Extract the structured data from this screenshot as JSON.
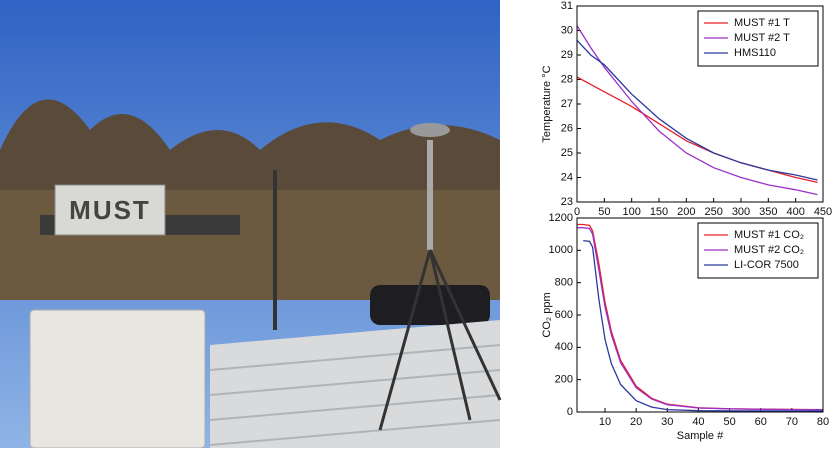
{
  "photo": {
    "label": "MUST"
  },
  "chart_data": [
    {
      "type": "line",
      "ylabel": "Temperature °C",
      "x": [
        0,
        25,
        50,
        75,
        100,
        150,
        200,
        250,
        300,
        350,
        400,
        440
      ],
      "xlim": [
        0,
        450
      ],
      "xticks": [
        0,
        50,
        100,
        150,
        200,
        250,
        300,
        350,
        400,
        450
      ],
      "ylim": [
        23,
        31
      ],
      "yticks": [
        23,
        24,
        25,
        26,
        27,
        28,
        29,
        30,
        31
      ],
      "legend": "upper right",
      "grid": false,
      "series": [
        {
          "name": "MUST #1 T",
          "color": "#e8202a",
          "values": [
            28.1,
            27.8,
            27.5,
            27.2,
            26.9,
            26.2,
            25.5,
            25.0,
            24.6,
            24.3,
            24.0,
            23.8
          ]
        },
        {
          "name": "MUST #2 T",
          "color": "#9b30c8",
          "values": [
            30.2,
            29.3,
            28.5,
            27.8,
            27.1,
            25.9,
            25.0,
            24.4,
            24.0,
            23.7,
            23.5,
            23.3
          ]
        },
        {
          "name": "HMS110",
          "color": "#2a3a9c",
          "values": [
            29.6,
            29.0,
            28.6,
            28.0,
            27.4,
            26.4,
            25.6,
            25.0,
            24.6,
            24.3,
            24.1,
            23.9
          ]
        }
      ]
    },
    {
      "type": "line",
      "ylabel": "CO₂ ppm",
      "xlabel": "Sample #",
      "x": [
        1,
        3,
        5,
        6,
        8,
        10,
        12,
        15,
        20,
        25,
        30,
        40,
        50,
        60,
        70,
        80
      ],
      "xlim": [
        1,
        80
      ],
      "xticks": [
        10,
        20,
        30,
        40,
        50,
        60,
        70,
        80
      ],
      "ylim": [
        0,
        1200
      ],
      "yticks": [
        0,
        200,
        400,
        600,
        800,
        1000,
        1200
      ],
      "legend": "upper right",
      "grid": false,
      "series": [
        {
          "name": "MUST #1 CO₂",
          "color": "#e8202a",
          "values": [
            1160,
            1160,
            1155,
            1120,
            920,
            680,
            500,
            320,
            160,
            85,
            48,
            26,
            20,
            18,
            16,
            15
          ]
        },
        {
          "name": "MUST #2 CO₂",
          "color": "#9b30c8",
          "values": [
            1140,
            1140,
            1135,
            1100,
            880,
            650,
            480,
            305,
            150,
            80,
            45,
            25,
            19,
            17,
            15,
            14
          ]
        },
        {
          "name": "LI-COR 7500",
          "color": "#2a3a9c",
          "values": [
            null,
            1060,
            1055,
            1020,
            700,
            450,
            300,
            170,
            70,
            30,
            15,
            8,
            7,
            7,
            6,
            6
          ]
        }
      ]
    }
  ]
}
